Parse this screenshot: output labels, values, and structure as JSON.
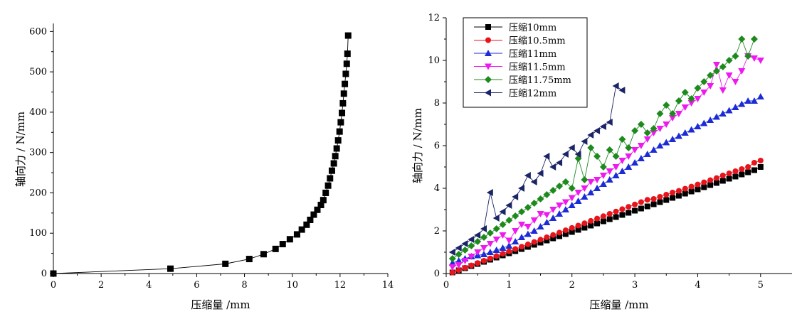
{
  "chart_data": [
    {
      "type": "line",
      "xlabel": "压缩量 /mm",
      "ylabel": "轴向力 / N/mm",
      "xlim": [
        0,
        14
      ],
      "ylim": [
        0,
        620
      ],
      "xticks": [
        0,
        2,
        4,
        6,
        8,
        10,
        12,
        14
      ],
      "yticks": [
        0,
        100,
        200,
        300,
        400,
        500,
        600
      ],
      "grid": false,
      "series": [
        {
          "color": "#000000",
          "marker": "square",
          "x": [
            0,
            4.9,
            7.2,
            8.2,
            8.8,
            9.3,
            9.6,
            9.9,
            10.2,
            10.4,
            10.6,
            10.75,
            10.9,
            11.05,
            11.2,
            11.3,
            11.4,
            11.5,
            11.58,
            11.66,
            11.74,
            11.8,
            11.86,
            11.92,
            11.98,
            12.03,
            12.08,
            12.12,
            12.16,
            12.2,
            12.24,
            12.28,
            12.31,
            12.34
          ],
          "values": [
            0,
            12,
            24,
            36,
            48,
            61,
            73,
            85,
            97,
            109,
            121,
            133,
            146,
            158,
            170,
            182,
            200,
            218,
            236,
            255,
            273,
            291,
            310,
            330,
            352,
            375,
            398,
            422,
            446,
            470,
            495,
            520,
            545,
            590
          ]
        }
      ]
    },
    {
      "type": "line",
      "xlabel": "压缩量 /mm",
      "ylabel": "轴向力 / N/mm",
      "xlim": [
        0,
        5.5
      ],
      "ylim": [
        0,
        12
      ],
      "xticks": [
        0,
        1,
        2,
        3,
        4,
        5
      ],
      "yticks": [
        0,
        2,
        4,
        6,
        8,
        10,
        12
      ],
      "grid": false,
      "legend_position": "top-left",
      "series": [
        {
          "name": "压缩10mm",
          "color": "#000000",
          "marker": "square",
          "x": [
            0.1,
            0.2,
            0.3,
            0.4,
            0.5,
            0.6,
            0.7,
            0.8,
            0.9,
            1.0,
            1.1,
            1.2,
            1.3,
            1.4,
            1.5,
            1.6,
            1.7,
            1.8,
            1.9,
            2.0,
            2.1,
            2.2,
            2.3,
            2.4,
            2.5,
            2.6,
            2.7,
            2.8,
            2.9,
            3.0,
            3.1,
            3.2,
            3.3,
            3.4,
            3.5,
            3.6,
            3.7,
            3.8,
            3.9,
            4.0,
            4.1,
            4.2,
            4.3,
            4.4,
            4.5,
            4.6,
            4.7,
            4.8,
            4.9,
            5.0
          ],
          "values": [
            0.05,
            0.15,
            0.25,
            0.35,
            0.45,
            0.55,
            0.65,
            0.75,
            0.85,
            0.95,
            1.05,
            1.15,
            1.25,
            1.35,
            1.45,
            1.55,
            1.65,
            1.75,
            1.85,
            1.95,
            2.05,
            2.15,
            2.25,
            2.35,
            2.45,
            2.55,
            2.65,
            2.75,
            2.85,
            2.95,
            3.05,
            3.15,
            3.25,
            3.35,
            3.45,
            3.55,
            3.65,
            3.75,
            3.85,
            3.95,
            4.05,
            4.15,
            4.25,
            4.35,
            4.45,
            4.55,
            4.65,
            4.75,
            4.85,
            5.0
          ]
        },
        {
          "name": "压缩10.5mm",
          "color": "#e8141b",
          "marker": "circle",
          "x": [
            0.1,
            0.2,
            0.3,
            0.4,
            0.5,
            0.6,
            0.7,
            0.8,
            0.9,
            1.0,
            1.1,
            1.2,
            1.3,
            1.4,
            1.5,
            1.6,
            1.7,
            1.8,
            1.9,
            2.0,
            2.1,
            2.2,
            2.3,
            2.4,
            2.5,
            2.6,
            2.7,
            2.8,
            2.9,
            3.0,
            3.1,
            3.2,
            3.3,
            3.4,
            3.5,
            3.6,
            3.7,
            3.8,
            3.9,
            4.0,
            4.1,
            4.2,
            4.3,
            4.4,
            4.5,
            4.6,
            4.7,
            4.8,
            4.9,
            5.0
          ],
          "values": [
            0.05,
            0.16,
            0.27,
            0.38,
            0.49,
            0.6,
            0.71,
            0.82,
            0.93,
            1.04,
            1.15,
            1.26,
            1.37,
            1.48,
            1.59,
            1.7,
            1.81,
            1.92,
            2.03,
            2.14,
            2.25,
            2.36,
            2.47,
            2.58,
            2.69,
            2.8,
            2.91,
            3.02,
            3.13,
            3.24,
            3.35,
            3.46,
            3.5,
            3.6,
            3.7,
            3.8,
            3.88,
            3.98,
            4.08,
            4.18,
            4.28,
            4.38,
            4.48,
            4.6,
            4.7,
            4.8,
            4.9,
            5.0,
            5.2,
            5.3
          ]
        },
        {
          "name": "压缩11mm",
          "color": "#1b2bd6",
          "marker": "triangle-up",
          "x": [
            0.1,
            0.2,
            0.3,
            0.4,
            0.5,
            0.6,
            0.7,
            0.8,
            0.9,
            1.0,
            1.1,
            1.2,
            1.3,
            1.4,
            1.5,
            1.6,
            1.7,
            1.8,
            1.9,
            2.0,
            2.1,
            2.2,
            2.3,
            2.4,
            2.5,
            2.6,
            2.7,
            2.8,
            2.9,
            3.0,
            3.1,
            3.2,
            3.3,
            3.4,
            3.5,
            3.6,
            3.7,
            3.8,
            3.9,
            4.0,
            4.1,
            4.2,
            4.3,
            4.4,
            4.5,
            4.6,
            4.7,
            4.8,
            4.9,
            5.0
          ],
          "values": [
            0.5,
            0.6,
            0.7,
            0.8,
            0.85,
            0.9,
            1.0,
            1.1,
            1.2,
            1.3,
            1.5,
            1.7,
            1.85,
            2.0,
            2.2,
            2.4,
            2.6,
            2.8,
            3.0,
            3.2,
            3.4,
            3.6,
            3.8,
            4.0,
            4.2,
            4.4,
            4.6,
            4.8,
            5.0,
            5.2,
            5.4,
            5.6,
            5.8,
            6.0,
            6.15,
            6.3,
            6.45,
            6.6,
            6.75,
            6.9,
            7.05,
            7.2,
            7.35,
            7.5,
            7.65,
            7.8,
            7.95,
            8.1,
            8.1,
            8.3
          ]
        },
        {
          "name": "压缩11.5mm",
          "color": "#ee19ee",
          "marker": "triangle-down",
          "x": [
            0.1,
            0.2,
            0.3,
            0.4,
            0.5,
            0.6,
            0.7,
            0.8,
            0.9,
            1.0,
            1.1,
            1.2,
            1.3,
            1.4,
            1.5,
            1.6,
            1.7,
            1.8,
            1.9,
            2.0,
            2.1,
            2.2,
            2.3,
            2.4,
            2.5,
            2.6,
            2.7,
            2.8,
            2.9,
            3.0,
            3.1,
            3.2,
            3.3,
            3.4,
            3.5,
            3.6,
            3.7,
            3.8,
            3.9,
            4.0,
            4.1,
            4.2,
            4.3,
            4.4,
            4.5,
            4.6,
            4.7,
            4.8,
            4.9,
            5.0
          ],
          "values": [
            0.3,
            0.4,
            0.6,
            0.8,
            1.0,
            1.2,
            1.4,
            1.6,
            1.8,
            1.55,
            2.0,
            2.3,
            2.2,
            2.5,
            2.8,
            2.75,
            3.0,
            3.2,
            3.35,
            3.55,
            3.8,
            4.0,
            4.3,
            4.4,
            4.6,
            4.8,
            5.0,
            5.3,
            5.5,
            5.8,
            6.0,
            6.3,
            6.6,
            6.8,
            7.0,
            7.3,
            7.5,
            7.8,
            8.0,
            8.2,
            8.5,
            8.8,
            9.8,
            8.6,
            9.3,
            9.0,
            9.5,
            10.2,
            10.1,
            10.0
          ]
        },
        {
          "name": "压缩11.75mm",
          "color": "#1e8a1e",
          "marker": "diamond",
          "x": [
            0.1,
            0.2,
            0.3,
            0.4,
            0.5,
            0.6,
            0.7,
            0.8,
            0.9,
            1.0,
            1.1,
            1.2,
            1.3,
            1.4,
            1.5,
            1.6,
            1.7,
            1.8,
            1.9,
            2.0,
            2.1,
            2.2,
            2.3,
            2.4,
            2.5,
            2.6,
            2.7,
            2.8,
            2.9,
            3.0,
            3.1,
            3.2,
            3.3,
            3.4,
            3.5,
            3.6,
            3.7,
            3.8,
            3.9,
            4.0,
            4.1,
            4.2,
            4.3,
            4.4,
            4.5,
            4.6,
            4.7,
            4.8,
            4.9
          ],
          "values": [
            0.7,
            0.9,
            1.1,
            1.3,
            1.5,
            1.7,
            1.9,
            2.1,
            2.3,
            2.5,
            2.7,
            2.9,
            3.1,
            3.3,
            3.5,
            3.7,
            3.9,
            4.1,
            4.3,
            4.0,
            5.4,
            4.4,
            5.9,
            5.5,
            5.0,
            5.8,
            5.5,
            6.3,
            5.9,
            6.7,
            7.0,
            6.6,
            6.8,
            7.5,
            7.9,
            7.5,
            8.1,
            8.5,
            8.2,
            8.7,
            9.0,
            9.3,
            9.5,
            9.7,
            10.0,
            10.2,
            11.0,
            10.2,
            11.0
          ]
        },
        {
          "name": "压缩12mm",
          "color": "#1a2466",
          "marker": "triangle-left",
          "x": [
            0.1,
            0.2,
            0.3,
            0.4,
            0.5,
            0.6,
            0.7,
            0.8,
            0.9,
            1.0,
            1.1,
            1.2,
            1.3,
            1.4,
            1.5,
            1.6,
            1.7,
            1.8,
            1.9,
            2.0,
            2.1,
            2.2,
            2.3,
            2.4,
            2.5,
            2.6,
            2.7,
            2.8
          ],
          "values": [
            1.0,
            1.2,
            1.4,
            1.6,
            1.8,
            2.1,
            3.8,
            2.6,
            2.9,
            3.2,
            3.6,
            4.0,
            4.6,
            4.3,
            4.7,
            5.5,
            5.0,
            5.2,
            5.6,
            5.9,
            5.6,
            6.2,
            6.5,
            6.7,
            6.9,
            7.1,
            8.8,
            8.6
          ]
        }
      ]
    }
  ]
}
